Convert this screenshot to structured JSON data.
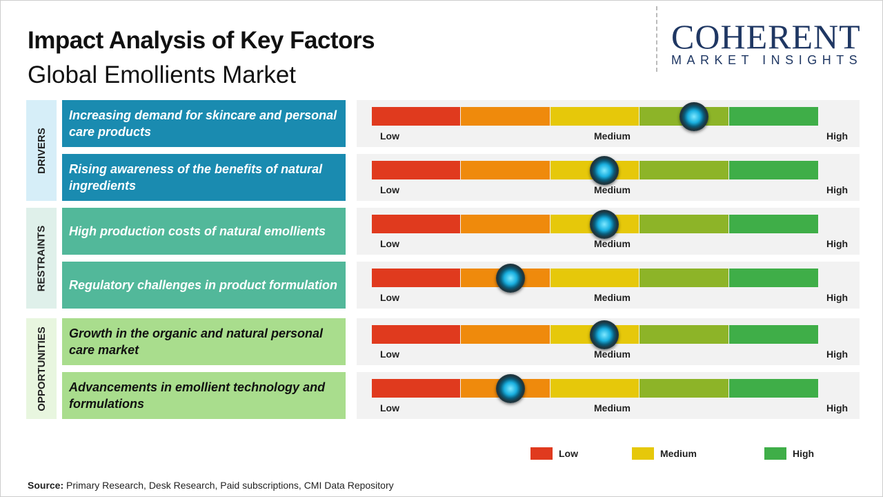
{
  "header": {
    "title": "Impact Analysis of Key Factors",
    "subtitle": "Global Emollients Market"
  },
  "logo": {
    "main": "COHERENT",
    "sub": "MARKET INSIGHTS"
  },
  "chart_data": {
    "type": "gauge-bar",
    "scale_labels": [
      "Low",
      "Medium",
      "High"
    ],
    "segment_colors": [
      "#e03a1e",
      "#ef8a0c",
      "#e6c80a",
      "#8db428",
      "#3fae48"
    ],
    "categories": [
      {
        "name": "DRIVERS",
        "bg": "#d6eef8",
        "row_color": "#1a8bb0",
        "text_color": "#ffffff",
        "factors": [
          {
            "label": "Increasing demand for skincare and personal care products",
            "impact": 0.72
          },
          {
            "label": "Rising awareness of the benefits of natural ingredients",
            "impact": 0.52
          }
        ]
      },
      {
        "name": "RESTRAINTS",
        "bg": "#dff0ea",
        "row_color": "#52b89a",
        "text_color": "#ffffff",
        "factors": [
          {
            "label": "High production costs of natural emollients",
            "impact": 0.52
          },
          {
            "label": "Regulatory challenges in product formulation",
            "impact": 0.31
          }
        ]
      },
      {
        "name": "OPPORTUNITIES",
        "bg": "#e8f6df",
        "row_color": "#a9dd8d",
        "text_color": "#111111",
        "factors": [
          {
            "label": "Growth in the organic and natural personal care market",
            "impact": 0.52
          },
          {
            "label": "Advancements in emollient technology and formulations",
            "impact": 0.31
          }
        ]
      }
    ],
    "legend": [
      {
        "label": "Low",
        "color": "#e03a1e"
      },
      {
        "label": "Medium",
        "color": "#e6c80a"
      },
      {
        "label": "High",
        "color": "#3fae48"
      }
    ]
  },
  "source": {
    "label": "Source:",
    "text": " Primary Research, Desk Research, Paid subscriptions, CMI Data Repository"
  }
}
